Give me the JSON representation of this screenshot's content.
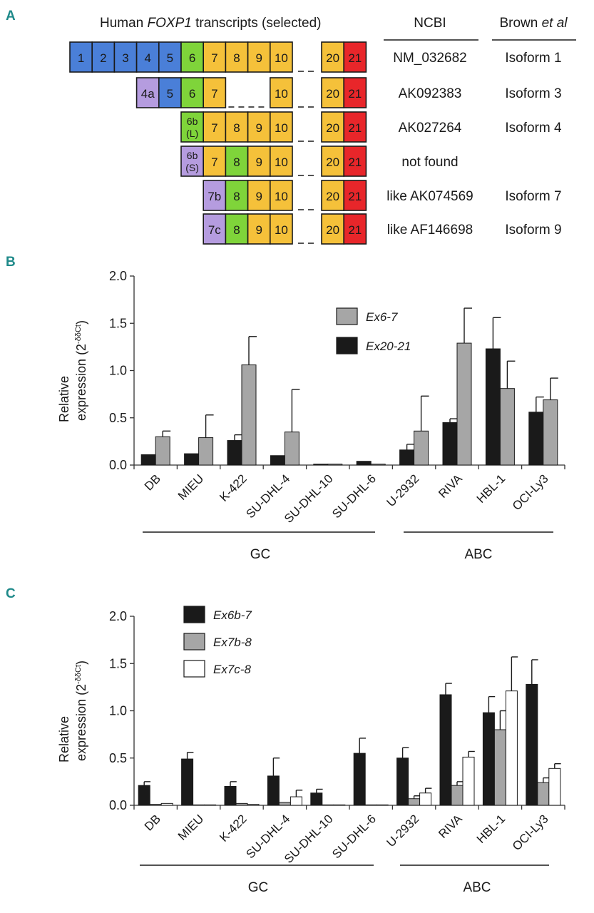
{
  "panel_a": {
    "letter": "A",
    "title_prefix": "Human ",
    "title_gene": "FOXP1",
    "title_suffix": " transcripts (selected)",
    "col_ncbi": "NCBI",
    "col_brown": "Brown ",
    "col_brown_italic": "et al",
    "colors": {
      "blue": "#4a7fd8",
      "lilac": "#b59cdf",
      "green": "#7fd43a",
      "yellow": "#f5c13a",
      "red": "#e8262a"
    },
    "transcripts": [
      {
        "ncbi": "NM_032682",
        "brown": "Isoform 1",
        "exons": [
          {
            "label": "1",
            "color": "blue"
          },
          {
            "label": "2",
            "color": "blue"
          },
          {
            "label": "3",
            "color": "blue"
          },
          {
            "label": "4",
            "color": "blue"
          },
          {
            "label": "5",
            "color": "blue"
          },
          {
            "label": "6",
            "color": "green"
          },
          {
            "label": "7",
            "color": "yellow"
          },
          {
            "label": "8",
            "color": "yellow"
          },
          {
            "label": "9",
            "color": "yellow"
          },
          {
            "label": "10",
            "color": "yellow"
          },
          {
            "label": "20",
            "color": "yellow"
          },
          {
            "label": "21",
            "color": "red"
          }
        ]
      },
      {
        "ncbi": "AK092383",
        "brown": "Isoform 3",
        "exons": [
          {
            "label": "4a",
            "color": "lilac"
          },
          {
            "label": "5",
            "color": "blue"
          },
          {
            "label": "6",
            "color": "green"
          },
          {
            "label": "7",
            "color": "yellow"
          },
          {
            "label": "10",
            "color": "yellow"
          },
          {
            "label": "20",
            "color": "yellow"
          },
          {
            "label": "21",
            "color": "red"
          }
        ]
      },
      {
        "ncbi": "AK027264",
        "brown": "Isoform 4",
        "exons": [
          {
            "label": "6b",
            "label2": "(L)",
            "color": "green"
          },
          {
            "label": "7",
            "color": "yellow"
          },
          {
            "label": "8",
            "color": "yellow"
          },
          {
            "label": "9",
            "color": "yellow"
          },
          {
            "label": "10",
            "color": "yellow"
          },
          {
            "label": "20",
            "color": "yellow"
          },
          {
            "label": "21",
            "color": "red"
          }
        ]
      },
      {
        "ncbi": "not found",
        "brown": "",
        "exons": [
          {
            "label": "6b",
            "label2": "(S)",
            "color": "lilac"
          },
          {
            "label": "7",
            "color": "yellow"
          },
          {
            "label": "8",
            "color": "green"
          },
          {
            "label": "9",
            "color": "yellow"
          },
          {
            "label": "10",
            "color": "yellow"
          },
          {
            "label": "20",
            "color": "yellow"
          },
          {
            "label": "21",
            "color": "red"
          }
        ]
      },
      {
        "ncbi": "like AK074569",
        "brown": "Isoform 7",
        "exons": [
          {
            "label": "7b",
            "color": "lilac"
          },
          {
            "label": "8",
            "color": "green"
          },
          {
            "label": "9",
            "color": "yellow"
          },
          {
            "label": "10",
            "color": "yellow"
          },
          {
            "label": "20",
            "color": "yellow"
          },
          {
            "label": "21",
            "color": "red"
          }
        ]
      },
      {
        "ncbi": "like AF146698",
        "brown": "Isoform 9",
        "exons": [
          {
            "label": "7c",
            "color": "lilac"
          },
          {
            "label": "8",
            "color": "green"
          },
          {
            "label": "9",
            "color": "yellow"
          },
          {
            "label": "10",
            "color": "yellow"
          },
          {
            "label": "20",
            "color": "yellow"
          },
          {
            "label": "21",
            "color": "red"
          }
        ]
      }
    ]
  },
  "chart_data": [
    {
      "panel": "B",
      "type": "bar",
      "ylabel_line1": "Relative",
      "ylabel_line2": "expression (2",
      "ylabel_sup": "-δδCt",
      "ylabel_close": ")",
      "ylim": [
        0,
        2.0
      ],
      "yticks": [
        "0.0",
        "0.5",
        "1.0",
        "1.5",
        "2.0"
      ],
      "categories": [
        "DB",
        "MIEU",
        "K-422",
        "SU-DHL-4",
        "SU-DHL-10",
        "SU-DHL-6",
        "U-2932",
        "RIVA",
        "HBL-1",
        "OCI-Ly3"
      ],
      "series": [
        {
          "name": "Ex20-21",
          "color": "#1a1a1a",
          "values": [
            0.11,
            0.12,
            0.26,
            0.1,
            0.01,
            0.04,
            0.16,
            0.45,
            1.23,
            0.56
          ],
          "errors": [
            0,
            0,
            0.06,
            0,
            0,
            0,
            0.06,
            0.04,
            0.33,
            0.16
          ]
        },
        {
          "name": "Ex6-7",
          "color": "#a6a6a6",
          "values": [
            0.3,
            0.29,
            1.06,
            0.35,
            0.01,
            0.01,
            0.36,
            1.29,
            0.81,
            0.69
          ],
          "errors": [
            0.06,
            0.24,
            0.3,
            0.45,
            0,
            0,
            0.37,
            0.37,
            0.29,
            0.23
          ]
        }
      ],
      "legend_order": [
        "Ex6-7",
        "Ex20-21"
      ],
      "groups": [
        {
          "label": "GC",
          "from": 0,
          "to": 5
        },
        {
          "label": "ABC",
          "from": 6,
          "to": 9
        }
      ]
    },
    {
      "panel": "C",
      "type": "bar",
      "ylabel_line1": "Relative",
      "ylabel_line2": "expression (2",
      "ylabel_sup": "-δδCt",
      "ylabel_close": ")",
      "ylim": [
        0,
        2.0
      ],
      "yticks": [
        "0.0",
        "0.5",
        "1.0",
        "1.5",
        "2.0"
      ],
      "categories": [
        "DB",
        "MIEU",
        "K-422",
        "SU-DHL-4",
        "SU-DHL-10",
        "SU-DHL-6",
        "U-2932",
        "RIVA",
        "HBL-1",
        "OCI-Ly3"
      ],
      "series": [
        {
          "name": "Ex6b-7",
          "color": "#1a1a1a",
          "values": [
            0.21,
            0.49,
            0.2,
            0.31,
            0.13,
            0.55,
            0.5,
            1.17,
            0.98,
            1.28
          ],
          "errors": [
            0.04,
            0.07,
            0.05,
            0.19,
            0.04,
            0.16,
            0.11,
            0.12,
            0.17,
            0.26
          ]
        },
        {
          "name": "Ex7b-8",
          "color": "#a6a6a6",
          "values": [
            0.01,
            0.0,
            0.02,
            0.03,
            0.0,
            0.0,
            0.07,
            0.21,
            0.8,
            0.24
          ],
          "errors": [
            0,
            0,
            0,
            0,
            0,
            0,
            0.03,
            0.04,
            0.2,
            0.05
          ]
        },
        {
          "name": "Ex7c-8",
          "color": "#ffffff",
          "values": [
            0.02,
            0.0,
            0.01,
            0.09,
            0.0,
            0.0,
            0.13,
            0.51,
            1.21,
            0.39
          ],
          "errors": [
            0,
            0,
            0,
            0.07,
            0,
            0,
            0.05,
            0.06,
            0.36,
            0.05
          ]
        }
      ],
      "legend_order": [
        "Ex6b-7",
        "Ex7b-8",
        "Ex7c-8"
      ],
      "groups": [
        {
          "label": "GC",
          "from": 0,
          "to": 5
        },
        {
          "label": "ABC",
          "from": 6,
          "to": 9
        }
      ]
    }
  ]
}
